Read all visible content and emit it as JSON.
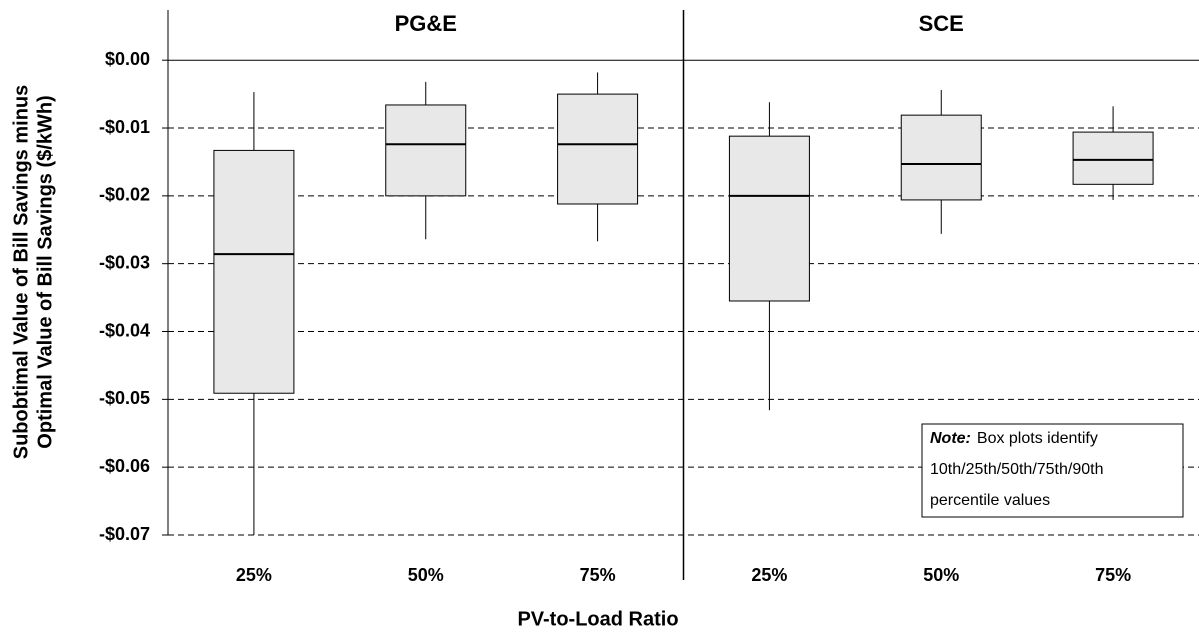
{
  "chart_data": {
    "type": "box",
    "y_label": [
      "Subobtimal Value of Bill Savings minus",
      "Optimal Value of Bill Savings ($/kWh)"
    ],
    "x_label": "PV-to-Load Ratio",
    "ylim": [
      -0.07,
      0.0074
    ],
    "yticks": [
      {
        "value": 0,
        "label": "$0.00"
      },
      {
        "value": -0.01,
        "label": "-$0.01"
      },
      {
        "value": -0.02,
        "label": "-$0.02"
      },
      {
        "value": -0.03,
        "label": "-$0.03"
      },
      {
        "value": -0.04,
        "label": "-$0.04"
      },
      {
        "value": -0.05,
        "label": "-$0.05"
      },
      {
        "value": -0.06,
        "label": "-$0.06"
      },
      {
        "value": -0.07,
        "label": "-$0.07"
      }
    ],
    "grid": true,
    "box_color": "#e8e8e8",
    "panels": [
      {
        "title": "PG&E",
        "categories": [
          "25%",
          "50%",
          "75%"
        ],
        "boxes": [
          {
            "p10": -0.07,
            "p25": -0.0491,
            "p50": -0.0286,
            "p75": -0.0133,
            "p90": -0.0047
          },
          {
            "p10": -0.0264,
            "p25": -0.02,
            "p50": -0.0124,
            "p75": -0.0066,
            "p90": -0.0032
          },
          {
            "p10": -0.0267,
            "p25": -0.0212,
            "p50": -0.0124,
            "p75": -0.005,
            "p90": -0.0018
          }
        ]
      },
      {
        "title": "SCE",
        "categories": [
          "25%",
          "50%",
          "75%"
        ],
        "boxes": [
          {
            "p10": -0.0516,
            "p25": -0.0355,
            "p50": -0.02,
            "p75": -0.0112,
            "p90": -0.0062
          },
          {
            "p10": -0.0256,
            "p25": -0.0206,
            "p50": -0.0153,
            "p75": -0.0081,
            "p90": -0.0044
          },
          {
            "p10": -0.0206,
            "p25": -0.0183,
            "p50": -0.0147,
            "p75": -0.0106,
            "p90": -0.0068
          }
        ]
      }
    ],
    "note": {
      "label": "Note:",
      "lines": [
        "Box plots identify",
        "10th/25th/50th/75th/90th",
        "percentile values"
      ]
    }
  }
}
